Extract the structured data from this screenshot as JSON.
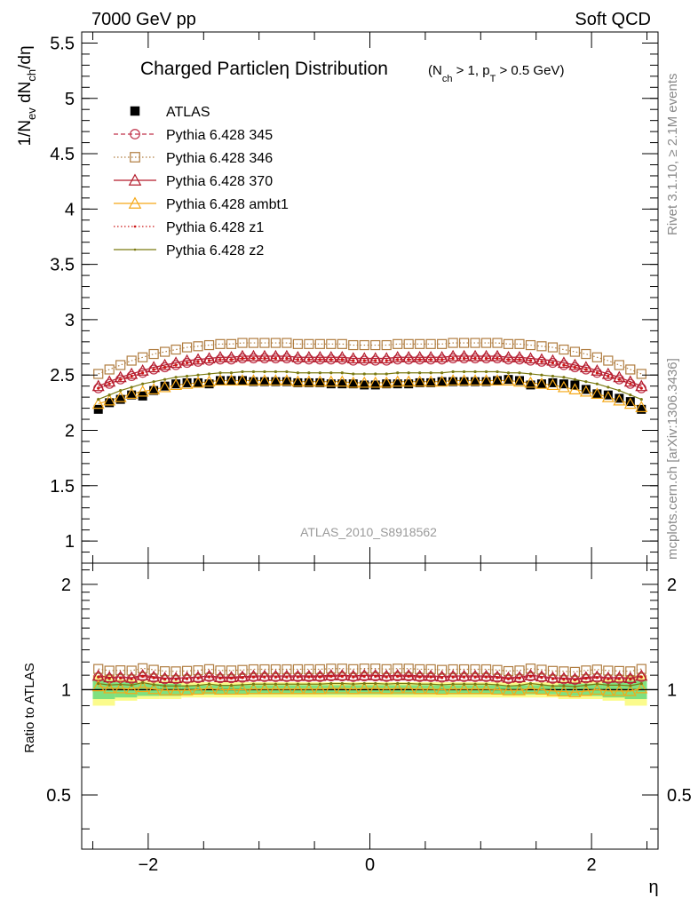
{
  "header": {
    "left": "7000 GeV pp",
    "right": "Soft QCD"
  },
  "side_labels": {
    "rivet": "Rivet 3.1.10, ≥ 2.1M events",
    "mcplots": "mcplots.cern.ch [arXiv:1306.3436]"
  },
  "chart_data": [
    {
      "panel": "main",
      "type": "scatter",
      "title": "Charged Particle η Distribution",
      "title_main": "Charged Particleη Distribution",
      "title_sub": "(N_ch > 1, p_T > 0.5 GeV)",
      "ylabel": "1/N_ev dN_ch/dη",
      "xlabel": "η",
      "analysis_label": "ATLAS_2010_S8918562",
      "xlim": [
        -2.6,
        2.6
      ],
      "ylim": [
        0.8,
        5.6
      ],
      "y_ticks": [
        "1",
        "1.5",
        "2",
        "2.5",
        "3",
        "3.5",
        "4",
        "4.5",
        "5",
        "5.5"
      ],
      "x_ticks": [
        "−2",
        "0",
        "2"
      ],
      "legend_position": "top-left",
      "x": [
        -2.45,
        -2.35,
        -2.25,
        -2.15,
        -2.05,
        -1.95,
        -1.85,
        -1.75,
        -1.65,
        -1.55,
        -1.45,
        -1.35,
        -1.25,
        -1.15,
        -1.05,
        -0.95,
        -0.85,
        -0.75,
        -0.65,
        -0.55,
        -0.45,
        -0.35,
        -0.25,
        -0.15,
        -0.05,
        0.05,
        0.15,
        0.25,
        0.35,
        0.45,
        0.55,
        0.65,
        0.75,
        0.85,
        0.95,
        1.05,
        1.15,
        1.25,
        1.35,
        1.45,
        1.55,
        1.65,
        1.75,
        1.85,
        1.95,
        2.05,
        2.15,
        2.25,
        2.35,
        2.45
      ],
      "series": [
        {
          "name": "ATLAS",
          "color": "#000000",
          "marker": "filled-square",
          "values": [
            2.19,
            2.25,
            2.28,
            2.32,
            2.31,
            2.36,
            2.4,
            2.42,
            2.43,
            2.43,
            2.42,
            2.45,
            2.45,
            2.45,
            2.44,
            2.44,
            2.44,
            2.44,
            2.43,
            2.43,
            2.43,
            2.42,
            2.42,
            2.42,
            2.41,
            2.41,
            2.42,
            2.42,
            2.42,
            2.43,
            2.43,
            2.44,
            2.44,
            2.44,
            2.44,
            2.44,
            2.45,
            2.46,
            2.45,
            2.41,
            2.42,
            2.43,
            2.42,
            2.41,
            2.37,
            2.33,
            2.32,
            2.29,
            2.26,
            2.19
          ]
        },
        {
          "name": "Pythia 6.428 345",
          "color": "#c0334a",
          "marker": "open-circle",
          "line": "dashed",
          "values": [
            2.38,
            2.42,
            2.46,
            2.49,
            2.52,
            2.55,
            2.57,
            2.59,
            2.61,
            2.62,
            2.63,
            2.64,
            2.64,
            2.65,
            2.65,
            2.65,
            2.65,
            2.65,
            2.64,
            2.64,
            2.64,
            2.64,
            2.64,
            2.63,
            2.63,
            2.63,
            2.63,
            2.64,
            2.64,
            2.64,
            2.64,
            2.64,
            2.65,
            2.65,
            2.65,
            2.65,
            2.65,
            2.64,
            2.64,
            2.63,
            2.62,
            2.61,
            2.59,
            2.57,
            2.55,
            2.52,
            2.49,
            2.46,
            2.42,
            2.38
          ]
        },
        {
          "name": "Pythia 6.428 346",
          "color": "#b07d40",
          "marker": "open-square",
          "line": "dotted",
          "values": [
            2.51,
            2.55,
            2.59,
            2.63,
            2.66,
            2.69,
            2.71,
            2.73,
            2.75,
            2.76,
            2.77,
            2.78,
            2.78,
            2.79,
            2.79,
            2.79,
            2.79,
            2.79,
            2.78,
            2.78,
            2.78,
            2.78,
            2.78,
            2.77,
            2.77,
            2.77,
            2.77,
            2.78,
            2.78,
            2.78,
            2.78,
            2.78,
            2.79,
            2.79,
            2.79,
            2.79,
            2.79,
            2.78,
            2.78,
            2.77,
            2.76,
            2.75,
            2.73,
            2.71,
            2.69,
            2.66,
            2.63,
            2.59,
            2.55,
            2.51
          ]
        },
        {
          "name": "Pythia 6.428 370",
          "color": "#b31b2b",
          "marker": "open-triangle",
          "line": "solid",
          "values": [
            2.4,
            2.44,
            2.48,
            2.51,
            2.54,
            2.57,
            2.59,
            2.61,
            2.63,
            2.64,
            2.65,
            2.66,
            2.66,
            2.67,
            2.67,
            2.67,
            2.67,
            2.67,
            2.66,
            2.66,
            2.66,
            2.66,
            2.66,
            2.65,
            2.65,
            2.65,
            2.65,
            2.66,
            2.66,
            2.66,
            2.66,
            2.66,
            2.67,
            2.67,
            2.67,
            2.67,
            2.67,
            2.66,
            2.66,
            2.65,
            2.64,
            2.63,
            2.61,
            2.59,
            2.57,
            2.54,
            2.51,
            2.48,
            2.44,
            2.4
          ]
        },
        {
          "name": "Pythia 6.428 ambt1",
          "color": "#f5a818",
          "marker": "open-triangle",
          "line": "solid",
          "values": [
            2.24,
            2.27,
            2.3,
            2.33,
            2.35,
            2.37,
            2.39,
            2.41,
            2.42,
            2.43,
            2.44,
            2.45,
            2.45,
            2.45,
            2.45,
            2.45,
            2.45,
            2.45,
            2.44,
            2.44,
            2.44,
            2.44,
            2.44,
            2.43,
            2.43,
            2.43,
            2.43,
            2.44,
            2.44,
            2.44,
            2.44,
            2.44,
            2.45,
            2.45,
            2.45,
            2.45,
            2.45,
            2.45,
            2.44,
            2.43,
            2.42,
            2.41,
            2.39,
            2.37,
            2.35,
            2.33,
            2.3,
            2.27,
            2.24,
            2.21
          ]
        },
        {
          "name": "Pythia 6.428 z1",
          "color": "#cc1414",
          "marker": "small-dot",
          "line": "dotted",
          "values": [
            2.38,
            2.42,
            2.46,
            2.49,
            2.52,
            2.55,
            2.57,
            2.59,
            2.61,
            2.62,
            2.63,
            2.64,
            2.64,
            2.65,
            2.65,
            2.65,
            2.65,
            2.65,
            2.64,
            2.64,
            2.64,
            2.64,
            2.64,
            2.63,
            2.63,
            2.63,
            2.63,
            2.64,
            2.64,
            2.64,
            2.64,
            2.64,
            2.65,
            2.65,
            2.65,
            2.65,
            2.65,
            2.64,
            2.64,
            2.63,
            2.62,
            2.61,
            2.59,
            2.57,
            2.55,
            2.52,
            2.49,
            2.46,
            2.42,
            2.38
          ]
        },
        {
          "name": "Pythia 6.428 z2",
          "color": "#7b7a12",
          "marker": "small-dot",
          "line": "solid",
          "values": [
            2.28,
            2.32,
            2.36,
            2.39,
            2.42,
            2.44,
            2.46,
            2.48,
            2.49,
            2.5,
            2.51,
            2.52,
            2.52,
            2.53,
            2.53,
            2.53,
            2.53,
            2.53,
            2.52,
            2.52,
            2.52,
            2.52,
            2.52,
            2.51,
            2.51,
            2.51,
            2.51,
            2.52,
            2.52,
            2.52,
            2.52,
            2.52,
            2.53,
            2.53,
            2.53,
            2.53,
            2.53,
            2.52,
            2.52,
            2.51,
            2.5,
            2.49,
            2.48,
            2.46,
            2.44,
            2.42,
            2.39,
            2.36,
            2.32,
            2.28
          ]
        }
      ]
    },
    {
      "panel": "ratio",
      "type": "scatter",
      "ylabel": "Ratio to ATLAS",
      "xlabel": "η",
      "xlim": [
        -2.6,
        2.6
      ],
      "ylim": [
        0.35,
        2.3
      ],
      "log_y": true,
      "y_ticks_left": [
        "0.5",
        "1",
        "2"
      ],
      "y_ticks_right": [
        "0.5",
        "1",
        "2"
      ],
      "x_ticks": [
        "−2",
        "0",
        "2"
      ],
      "uncertainty_bands": {
        "inner_color": "#7fe07f",
        "outer_color": "#fbfb8c",
        "edges": [
          -2.5,
          -2.3,
          -2.1,
          -1.9,
          -1.7,
          1.7,
          1.9,
          2.1,
          2.3,
          2.5
        ],
        "inner": [
          0.06,
          0.05,
          0.04,
          0.04,
          0.03,
          0.04,
          0.04,
          0.05,
          0.06
        ],
        "outer": [
          0.1,
          0.07,
          0.06,
          0.06,
          0.05,
          0.06,
          0.06,
          0.07,
          0.1
        ]
      }
    }
  ]
}
